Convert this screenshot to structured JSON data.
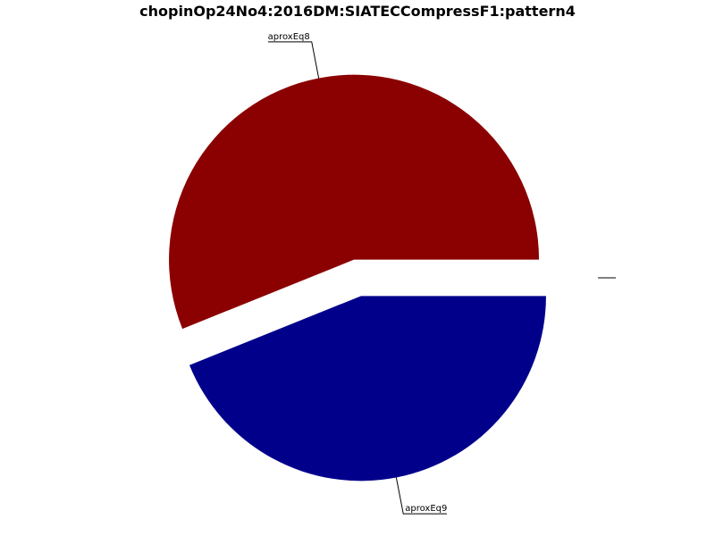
{
  "chart_data": {
    "type": "pie",
    "title": "chopinOp24No4:2016DM:SIATECCompressF1:pattern4",
    "slices": [
      {
        "label": "aproxEq8",
        "value": 56.1,
        "color": "#8b0000",
        "exploded": true
      },
      {
        "label": "aproxEq9",
        "value": 43.9,
        "color": "#00008b",
        "exploded": true
      },
      {
        "label": "",
        "value": 0,
        "color": "#ffffff",
        "exploded": true
      }
    ],
    "start_angle_deg": 0,
    "direction": "counterclockwise",
    "legend": "none"
  }
}
